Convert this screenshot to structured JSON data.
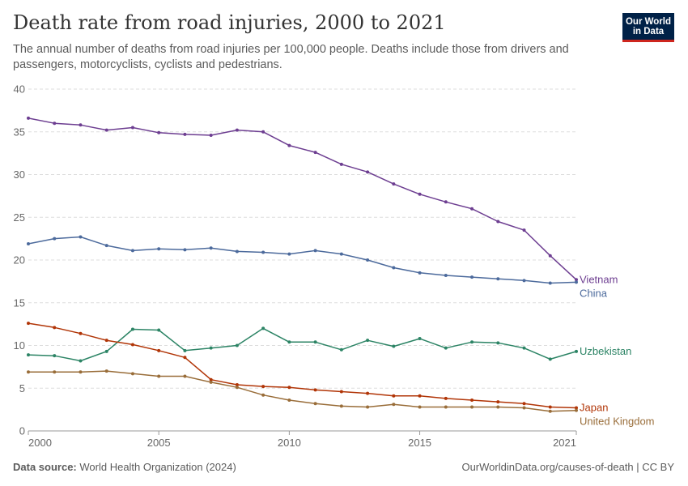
{
  "header": {
    "title": "Death rate from road injuries, 2000 to 2021",
    "subtitle": "The annual number of deaths from road injuries per 100,000 people. Deaths include those from drivers and passengers, motorcyclists, cyclists and pedestrians.",
    "logo_line1": "Our World",
    "logo_line2": "in Data"
  },
  "footer": {
    "source_label": "Data source:",
    "source_value": "World Health Organization (2024)",
    "url": "OurWorldinData.org/causes-of-death | CC BY"
  },
  "chart_data": {
    "type": "line",
    "title": "Death rate from road injuries, 2000 to 2021",
    "x": [
      2000,
      2001,
      2002,
      2003,
      2004,
      2005,
      2006,
      2007,
      2008,
      2009,
      2010,
      2011,
      2012,
      2013,
      2014,
      2015,
      2016,
      2017,
      2018,
      2019,
      2020,
      2021
    ],
    "xticks": [
      "2000",
      "2005",
      "2010",
      "2015",
      "2021"
    ],
    "xtick_values": [
      2000,
      2005,
      2010,
      2015,
      2021
    ],
    "yticks": [
      "0",
      "5",
      "10",
      "15",
      "20",
      "25",
      "30",
      "35",
      "40"
    ],
    "ylim": [
      0,
      40
    ],
    "xlim": [
      2000,
      2021
    ],
    "grid": "horizontal dashed",
    "legend": "line-end labels",
    "series": [
      {
        "name": "Vietnam",
        "color": "#6d3e91",
        "values": [
          36.6,
          36.0,
          35.8,
          35.2,
          35.5,
          34.9,
          34.7,
          34.6,
          35.2,
          35.0,
          33.4,
          32.6,
          31.2,
          30.3,
          28.9,
          27.7,
          26.8,
          26.0,
          24.5,
          23.5,
          20.5,
          17.7
        ]
      },
      {
        "name": "China",
        "color": "#4c6a9c",
        "values": [
          21.9,
          22.5,
          22.7,
          21.7,
          21.1,
          21.3,
          21.2,
          21.4,
          21.0,
          20.9,
          20.7,
          21.1,
          20.7,
          20.0,
          19.1,
          18.5,
          18.2,
          18.0,
          17.8,
          17.6,
          17.3,
          17.4
        ]
      },
      {
        "name": "Uzbekistan",
        "color": "#2c8465",
        "values": [
          8.9,
          8.8,
          8.2,
          9.3,
          11.9,
          11.8,
          9.4,
          9.7,
          10.0,
          12.0,
          10.4,
          10.4,
          9.5,
          10.6,
          9.9,
          10.8,
          9.7,
          10.4,
          10.3,
          9.7,
          8.4,
          9.3
        ]
      },
      {
        "name": "Japan",
        "color": "#b13507",
        "values": [
          12.6,
          12.1,
          11.4,
          10.6,
          10.1,
          9.4,
          8.6,
          6.0,
          5.4,
          5.2,
          5.1,
          4.8,
          4.6,
          4.4,
          4.1,
          4.1,
          3.8,
          3.6,
          3.4,
          3.2,
          2.8,
          2.7
        ]
      },
      {
        "name": "United Kingdom",
        "color": "#996d39",
        "values": [
          6.9,
          6.9,
          6.9,
          7.0,
          6.7,
          6.4,
          6.4,
          5.7,
          5.1,
          4.2,
          3.6,
          3.2,
          2.9,
          2.8,
          3.1,
          2.8,
          2.8,
          2.8,
          2.8,
          2.7,
          2.3,
          2.4
        ]
      }
    ]
  }
}
